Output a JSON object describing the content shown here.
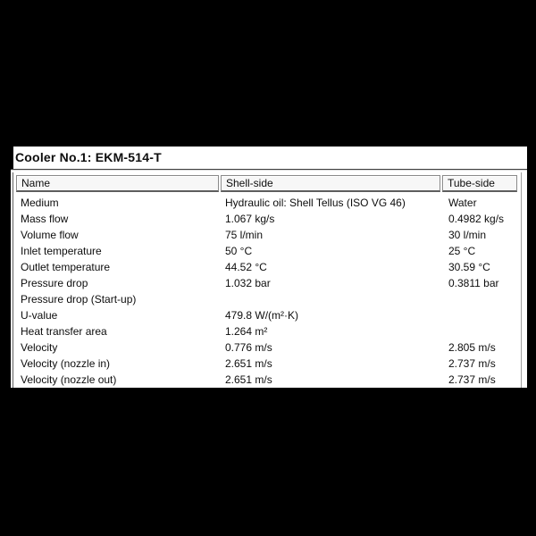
{
  "panel": {
    "title": "Cooler No.1: EKM-514-T"
  },
  "colors": {
    "background": "#000000",
    "panel_background": "#ffffff",
    "text": "#0d0d0d",
    "header_fill": "#f7f7f7",
    "border_dark": "#5e5e5e",
    "border_gray": "#8a8a8a"
  },
  "table": {
    "columns": [
      {
        "label": "Name"
      },
      {
        "label": "Shell-side"
      },
      {
        "label": "Tube-side"
      }
    ],
    "rows": [
      {
        "name": "Medium",
        "shell": "Hydraulic oil: Shell Tellus (ISO VG 46)",
        "tube": "Water"
      },
      {
        "name": "Mass flow",
        "shell": "1.067 kg/s",
        "tube": "0.4982 kg/s"
      },
      {
        "name": "Volume flow",
        "shell": "75 l/min",
        "tube": "30 l/min"
      },
      {
        "name": "Inlet temperature",
        "shell": "50 °C",
        "tube": "25 °C"
      },
      {
        "name": "Outlet temperature",
        "shell": "44.52 °C",
        "tube": "30.59 °C"
      },
      {
        "name": "Pressure drop",
        "shell": "1.032 bar",
        "tube": "0.3811 bar"
      },
      {
        "name": "Pressure drop (Start-up)",
        "shell": "",
        "tube": ""
      },
      {
        "name": "U-value",
        "shell": "479.8 W/(m²·K)",
        "tube": ""
      },
      {
        "name": "Heat transfer area",
        "shell": "1.264 m²",
        "tube": ""
      },
      {
        "name": "Velocity",
        "shell": "0.776 m/s",
        "tube": "2.805 m/s"
      },
      {
        "name": "Velocity (nozzle in)",
        "shell": "2.651 m/s",
        "tube": "2.737 m/s"
      },
      {
        "name": "Velocity (nozzle out)",
        "shell": "2.651 m/s",
        "tube": "2.737 m/s"
      }
    ]
  }
}
